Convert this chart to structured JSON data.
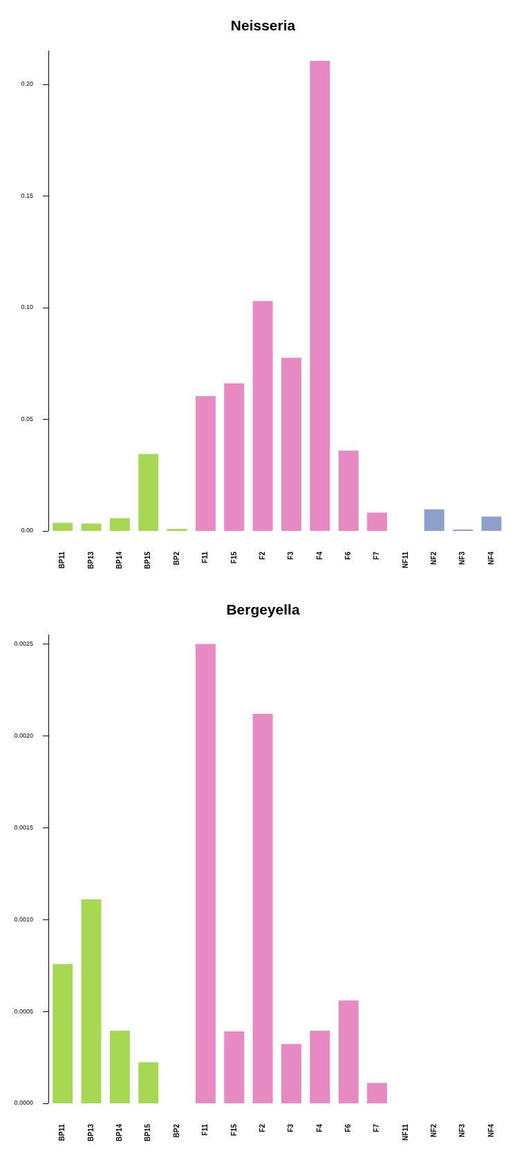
{
  "chart_data": [
    {
      "type": "bar",
      "title": "Neisseria",
      "categories": [
        "BP11",
        "BP13",
        "BP14",
        "BP15",
        "BP2",
        "F11",
        "F15",
        "F2",
        "F3",
        "F4",
        "F6",
        "F7",
        "NF11",
        "NF2",
        "NF3",
        "NF4"
      ],
      "values": [
        0.0036,
        0.0033,
        0.0057,
        0.0344,
        0.0009,
        0.0603,
        0.0661,
        0.1029,
        0.0775,
        0.2104,
        0.036,
        0.0082,
        0,
        0.0097,
        0.0006,
        0.0064
      ],
      "colors": [
        "#a6d854",
        "#a6d854",
        "#a6d854",
        "#a6d854",
        "#a6d854",
        "#e78ac3",
        "#e78ac3",
        "#e78ac3",
        "#e78ac3",
        "#e78ac3",
        "#e78ac3",
        "#e78ac3",
        "#8da0cb",
        "#8da0cb",
        "#8da0cb",
        "#8da0cb"
      ],
      "ylim": [
        0,
        0.215
      ],
      "yticks": [
        {
          "value": 0,
          "label": "0.00"
        },
        {
          "value": 0.05,
          "label": "0.05"
        },
        {
          "value": 0.1,
          "label": "0.10"
        },
        {
          "value": 0.15,
          "label": "0.15"
        },
        {
          "value": 0.2,
          "label": "0.20"
        }
      ],
      "grid": false,
      "legend": false
    },
    {
      "type": "bar",
      "title": "Bergeyella",
      "categories": [
        "BP11",
        "BP13",
        "BP14",
        "BP15",
        "BP2",
        "F11",
        "F15",
        "F2",
        "F3",
        "F4",
        "F6",
        "F7",
        "NF11",
        "NF2",
        "NF3",
        "NF4"
      ],
      "values": [
        0.000758,
        0.00111,
        0.000395,
        0.000224,
        0,
        0.0025,
        0.000391,
        0.00212,
        0.000323,
        0.000395,
        0.00056,
        0.000111,
        0,
        0,
        0,
        0
      ],
      "colors": [
        "#a6d854",
        "#a6d854",
        "#a6d854",
        "#a6d854",
        "#a6d854",
        "#e78ac3",
        "#e78ac3",
        "#e78ac3",
        "#e78ac3",
        "#e78ac3",
        "#e78ac3",
        "#e78ac3",
        "#8da0cb",
        "#8da0cb",
        "#8da0cb",
        "#8da0cb"
      ],
      "ylim": [
        0,
        0.00255
      ],
      "yticks": [
        {
          "value": 0,
          "label": "0.0000"
        },
        {
          "value": 0.0005,
          "label": "0.0005"
        },
        {
          "value": 0.001,
          "label": "0.0010"
        },
        {
          "value": 0.0015,
          "label": "0.0015"
        },
        {
          "value": 0.002,
          "label": "0.0020"
        },
        {
          "value": 0.0025,
          "label": "0.0025"
        }
      ],
      "grid": false,
      "legend": false
    }
  ]
}
